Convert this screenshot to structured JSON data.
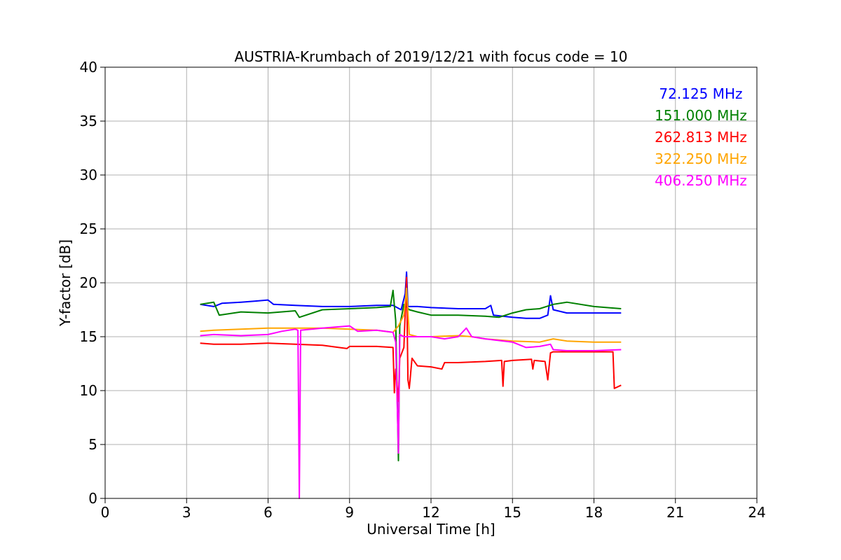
{
  "chart_data": {
    "type": "line",
    "title": "AUSTRIA-Krumbach of 2019/12/21 with focus code = 10",
    "xlabel": "Universal Time [h]",
    "ylabel": "Y-factor [dB]",
    "xlim": [
      0,
      24
    ],
    "ylim": [
      0,
      40
    ],
    "xticks": [
      0,
      3,
      6,
      9,
      12,
      15,
      18,
      21,
      24
    ],
    "yticks": [
      0,
      5,
      10,
      15,
      20,
      25,
      30,
      35,
      40
    ],
    "grid": true,
    "legend_position": "top-right",
    "series": [
      {
        "name": "72.125 MHz",
        "color": "#0000ff",
        "points": [
          [
            3.5,
            18.0
          ],
          [
            4.0,
            17.8
          ],
          [
            4.3,
            18.1
          ],
          [
            5.0,
            18.2
          ],
          [
            5.5,
            18.3
          ],
          [
            6.0,
            18.4
          ],
          [
            6.2,
            18.0
          ],
          [
            7.0,
            17.9
          ],
          [
            8.0,
            17.8
          ],
          [
            9.0,
            17.8
          ],
          [
            10.0,
            17.9
          ],
          [
            10.6,
            17.9
          ],
          [
            10.9,
            17.5
          ],
          [
            11.05,
            19.0
          ],
          [
            11.1,
            21.0
          ],
          [
            11.15,
            17.8
          ],
          [
            11.5,
            17.8
          ],
          [
            12.0,
            17.7
          ],
          [
            13.0,
            17.6
          ],
          [
            14.0,
            17.6
          ],
          [
            14.2,
            17.9
          ],
          [
            14.3,
            17.0
          ],
          [
            15.0,
            16.8
          ],
          [
            15.5,
            16.7
          ],
          [
            16.0,
            16.7
          ],
          [
            16.3,
            17.0
          ],
          [
            16.4,
            18.8
          ],
          [
            16.5,
            17.5
          ],
          [
            17.0,
            17.2
          ],
          [
            18.0,
            17.2
          ],
          [
            19.0,
            17.2
          ]
        ]
      },
      {
        "name": "151.000 MHz",
        "color": "#008000",
        "points": [
          [
            3.5,
            18.0
          ],
          [
            4.0,
            18.2
          ],
          [
            4.2,
            17.0
          ],
          [
            5.0,
            17.3
          ],
          [
            6.0,
            17.2
          ],
          [
            7.0,
            17.4
          ],
          [
            7.15,
            16.8
          ],
          [
            8.0,
            17.5
          ],
          [
            9.0,
            17.6
          ],
          [
            10.0,
            17.7
          ],
          [
            10.5,
            17.8
          ],
          [
            10.6,
            19.3
          ],
          [
            10.7,
            16.5
          ],
          [
            10.8,
            3.5
          ],
          [
            10.85,
            16.0
          ],
          [
            11.0,
            18.0
          ],
          [
            11.2,
            17.5
          ],
          [
            11.5,
            17.3
          ],
          [
            12.0,
            17.0
          ],
          [
            13.0,
            17.0
          ],
          [
            14.0,
            16.9
          ],
          [
            14.5,
            16.8
          ],
          [
            15.0,
            17.2
          ],
          [
            15.5,
            17.5
          ],
          [
            16.0,
            17.6
          ],
          [
            16.5,
            18.0
          ],
          [
            17.0,
            18.2
          ],
          [
            18.0,
            17.8
          ],
          [
            19.0,
            17.6
          ]
        ]
      },
      {
        "name": "262.813 MHz",
        "color": "#ff0000",
        "points": [
          [
            3.5,
            14.4
          ],
          [
            4.0,
            14.3
          ],
          [
            5.0,
            14.3
          ],
          [
            6.0,
            14.4
          ],
          [
            7.0,
            14.3
          ],
          [
            8.0,
            14.2
          ],
          [
            8.9,
            13.9
          ],
          [
            9.0,
            14.1
          ],
          [
            10.0,
            14.1
          ],
          [
            10.6,
            14.0
          ],
          [
            10.65,
            9.8
          ],
          [
            10.7,
            12.0
          ],
          [
            10.8,
            9.0
          ],
          [
            10.85,
            13.0
          ],
          [
            11.0,
            14.0
          ],
          [
            11.1,
            20.5
          ],
          [
            11.15,
            11.0
          ],
          [
            11.2,
            10.2
          ],
          [
            11.3,
            13.0
          ],
          [
            11.5,
            12.3
          ],
          [
            12.0,
            12.2
          ],
          [
            12.4,
            12.0
          ],
          [
            12.5,
            12.6
          ],
          [
            13.0,
            12.6
          ],
          [
            14.0,
            12.7
          ],
          [
            14.6,
            12.8
          ],
          [
            14.65,
            10.4
          ],
          [
            14.7,
            12.7
          ],
          [
            15.0,
            12.8
          ],
          [
            15.7,
            12.9
          ],
          [
            15.75,
            12.0
          ],
          [
            15.8,
            12.8
          ],
          [
            16.2,
            12.7
          ],
          [
            16.3,
            11.0
          ],
          [
            16.4,
            13.5
          ],
          [
            16.5,
            13.6
          ],
          [
            17.0,
            13.6
          ],
          [
            18.0,
            13.6
          ],
          [
            18.7,
            13.6
          ],
          [
            18.75,
            10.2
          ],
          [
            19.0,
            10.5
          ]
        ]
      },
      {
        "name": "322.250 MHz",
        "color": "#ffa500",
        "points": [
          [
            3.5,
            15.5
          ],
          [
            4.0,
            15.6
          ],
          [
            5.0,
            15.7
          ],
          [
            6.0,
            15.8
          ],
          [
            7.0,
            15.8
          ],
          [
            8.0,
            15.8
          ],
          [
            9.0,
            15.7
          ],
          [
            10.0,
            15.6
          ],
          [
            10.6,
            15.4
          ],
          [
            10.8,
            16.0
          ],
          [
            11.0,
            17.0
          ],
          [
            11.1,
            19.5
          ],
          [
            11.2,
            15.2
          ],
          [
            11.5,
            15.0
          ],
          [
            12.0,
            15.0
          ],
          [
            13.0,
            15.1
          ],
          [
            13.5,
            15.0
          ],
          [
            14.0,
            14.8
          ],
          [
            15.0,
            14.6
          ],
          [
            16.0,
            14.5
          ],
          [
            16.5,
            14.8
          ],
          [
            17.0,
            14.6
          ],
          [
            18.0,
            14.5
          ],
          [
            19.0,
            14.5
          ]
        ]
      },
      {
        "name": "406.250 MHz",
        "color": "#ff00ff",
        "points": [
          [
            3.5,
            15.1
          ],
          [
            4.0,
            15.2
          ],
          [
            5.0,
            15.1
          ],
          [
            6.0,
            15.2
          ],
          [
            6.5,
            15.5
          ],
          [
            7.0,
            15.7
          ],
          [
            7.1,
            15.6
          ],
          [
            7.15,
            0.0
          ],
          [
            7.2,
            15.6
          ],
          [
            8.0,
            15.8
          ],
          [
            9.0,
            16.0
          ],
          [
            9.3,
            15.5
          ],
          [
            10.0,
            15.6
          ],
          [
            10.6,
            15.4
          ],
          [
            10.7,
            14.5
          ],
          [
            10.8,
            4.2
          ],
          [
            10.85,
            15.2
          ],
          [
            11.0,
            15.0
          ],
          [
            11.5,
            15.0
          ],
          [
            12.0,
            15.0
          ],
          [
            12.5,
            14.8
          ],
          [
            13.0,
            15.0
          ],
          [
            13.3,
            15.8
          ],
          [
            13.5,
            15.0
          ],
          [
            14.0,
            14.8
          ],
          [
            15.0,
            14.5
          ],
          [
            15.5,
            14.0
          ],
          [
            16.0,
            14.1
          ],
          [
            16.4,
            14.3
          ],
          [
            16.5,
            13.8
          ],
          [
            17.0,
            13.7
          ],
          [
            18.0,
            13.7
          ],
          [
            19.0,
            13.8
          ]
        ]
      }
    ]
  }
}
